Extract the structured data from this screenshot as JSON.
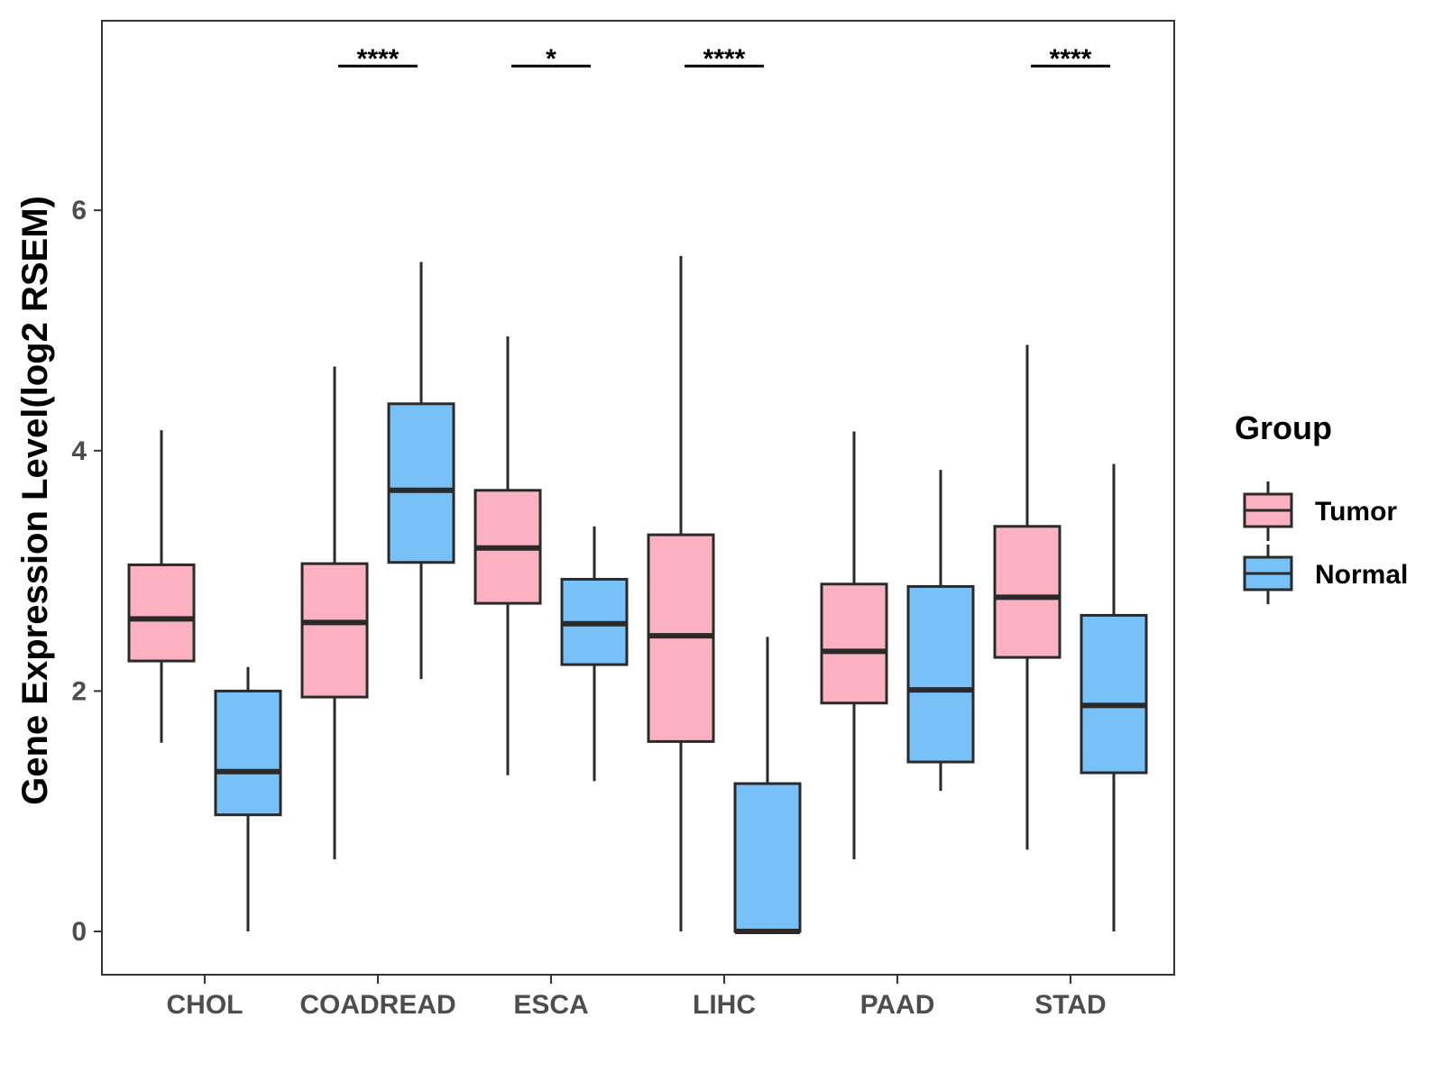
{
  "colors": {
    "tumor": "#fbb1c1",
    "normal": "#77c0f8",
    "stroke": "#2a2a2a",
    "panel_border": "#333333",
    "tick_text": "#4d4d4d"
  },
  "chart_data": {
    "type": "boxplot",
    "title": "",
    "xlabel": "",
    "ylabel": "Gene Expression Level(log2 RSEM)",
    "ylim": [
      -0.35,
      7.6
    ],
    "yticks": [
      0,
      2,
      4,
      6
    ],
    "ytick_labels": [
      "0",
      "2",
      "4",
      "6"
    ],
    "categories": [
      "CHOL",
      "COADREAD",
      "ESCA",
      "LIHC",
      "PAAD",
      "STAD"
    ],
    "grid": false,
    "legend": {
      "title": "Group",
      "position": "right",
      "entries": [
        {
          "name": "Tumor",
          "color": "#fbb1c1"
        },
        {
          "name": "Normal",
          "color": "#77c0f8"
        }
      ]
    },
    "series": [
      {
        "name": "Tumor",
        "color": "#fbb1c1",
        "boxes": [
          {
            "min": 1.57,
            "q1": 2.25,
            "median": 2.6,
            "q3": 3.05,
            "max": 4.17
          },
          {
            "min": 0.6,
            "q1": 1.95,
            "median": 2.57,
            "q3": 3.06,
            "max": 4.7
          },
          {
            "min": 1.3,
            "q1": 2.73,
            "median": 3.19,
            "q3": 3.67,
            "max": 4.95
          },
          {
            "min": 0.0,
            "q1": 1.58,
            "median": 2.46,
            "q3": 3.3,
            "max": 5.62
          },
          {
            "min": 0.6,
            "q1": 1.9,
            "median": 2.33,
            "q3": 2.89,
            "max": 4.16
          },
          {
            "min": 0.68,
            "q1": 2.28,
            "median": 2.78,
            "q3": 3.37,
            "max": 4.88
          }
        ]
      },
      {
        "name": "Normal",
        "color": "#77c0f8",
        "boxes": [
          {
            "min": 0.0,
            "q1": 0.97,
            "median": 1.33,
            "q3": 2.0,
            "max": 2.2
          },
          {
            "min": 2.1,
            "q1": 3.07,
            "median": 3.67,
            "q3": 4.39,
            "max": 5.57
          },
          {
            "min": 1.25,
            "q1": 2.22,
            "median": 2.56,
            "q3": 2.93,
            "max": 3.37
          },
          {
            "min": 0.0,
            "q1": 0.0,
            "median": 0.0,
            "q3": 1.23,
            "max": 2.45
          },
          {
            "min": 1.17,
            "q1": 1.41,
            "median": 2.01,
            "q3": 2.87,
            "max": 3.84
          },
          {
            "min": 0.0,
            "q1": 1.32,
            "median": 1.88,
            "q3": 2.63,
            "max": 3.89
          }
        ]
      }
    ],
    "significance": [
      {
        "category": "COADREAD",
        "label": "****",
        "y": 7.2
      },
      {
        "category": "ESCA",
        "label": "*",
        "y": 7.2
      },
      {
        "category": "LIHC",
        "label": "****",
        "y": 7.2
      },
      {
        "category": "STAD",
        "label": "****",
        "y": 7.2
      }
    ]
  }
}
